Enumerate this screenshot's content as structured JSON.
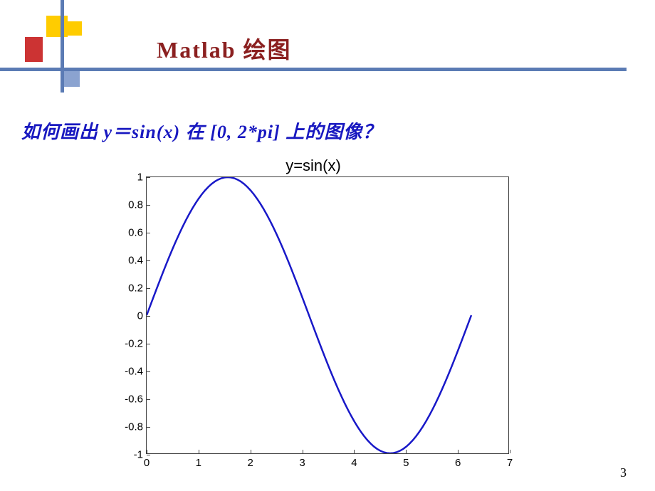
{
  "title": "Matlab 绘图",
  "question_parts": {
    "p1": "如何画出 ",
    "func": "y＝sin(x)",
    "p2": " 在 ",
    "range": "[0, 2*pi]",
    "p3": " 上的图像？"
  },
  "chart": {
    "type": "line",
    "title": "y=sin(x)",
    "xlim": [
      0,
      7
    ],
    "ylim": [
      -1,
      1
    ],
    "xtick_step": 1,
    "ytick_step": 0.2,
    "x_ticks": [
      0,
      1,
      2,
      3,
      4,
      5,
      6,
      7
    ],
    "y_ticks": [
      -1,
      -0.8,
      -0.6,
      -0.4,
      -0.2,
      0,
      0.2,
      0.4,
      0.6,
      0.8,
      1
    ],
    "line_color": "#1818c8",
    "line_width": 2.5,
    "border_color": "#404040",
    "background_color": "#ffffff",
    "title_fontsize": 22,
    "tick_fontsize": 15,
    "data_xmin": 0,
    "data_xmax": 6.2832,
    "data_points": 100
  },
  "page_number": "3",
  "decoration": {
    "yellow": "#ffcc00",
    "red": "#cc3333",
    "blue_line": "#5b7bb4",
    "blue_sq": "#8ba3d0"
  }
}
